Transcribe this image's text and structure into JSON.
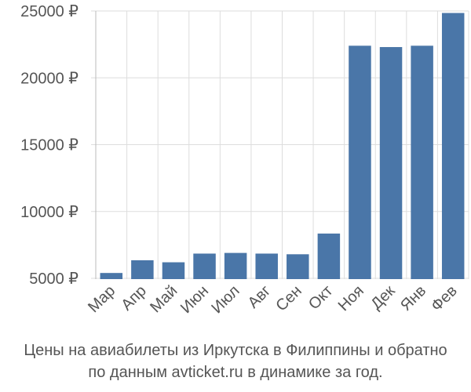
{
  "chart_data": {
    "type": "bar",
    "categories": [
      "Мар",
      "Апр",
      "Май",
      "Июн",
      "Июл",
      "Авг",
      "Сен",
      "Окт",
      "Ноя",
      "Дек",
      "Янв",
      "Фев"
    ],
    "values": [
      5400,
      6350,
      6200,
      6850,
      6900,
      6850,
      6800,
      8350,
      22400,
      22300,
      22400,
      24850
    ],
    "ylim": [
      4000,
      25000
    ],
    "yticks": [
      5000,
      10000,
      15000,
      20000,
      25000
    ],
    "ytick_labels": [
      "5000 ₽",
      "10000 ₽",
      "15000 ₽",
      "20000 ₽",
      "25000 ₽"
    ],
    "grid": true,
    "bar_color": "#4a76a8",
    "grid_color": "#dddddd"
  },
  "caption": {
    "line1": "Цены на авиабилеты из Иркутска в Филиппины и обратно",
    "line2": "по данным avticket.ru в динамике за год."
  }
}
